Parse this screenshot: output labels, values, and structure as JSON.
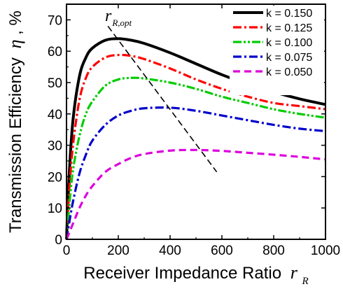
{
  "chart_data": {
    "type": "line",
    "xlabel": "Receiver Impedance Ratio",
    "xlabel_symbol": "r",
    "xlabel_subscript": "R",
    "ylabel": "Transmission Efficiency",
    "ylabel_symbol": "η",
    "ylabel_unit": ", %",
    "xlim": [
      0,
      1000
    ],
    "ylim": [
      0,
      75
    ],
    "xticks": [
      0,
      200,
      400,
      600,
      800,
      1000
    ],
    "yticks": [
      0,
      10,
      20,
      30,
      40,
      50,
      60,
      70
    ],
    "grid": false,
    "legend_position": "top-right",
    "x": [
      0,
      10,
      25,
      50,
      75,
      100,
      150,
      200,
      250,
      300,
      400,
      500,
      600,
      700,
      800,
      900,
      1000
    ],
    "series": [
      {
        "name": "k = 0.150",
        "color": "#000000",
        "dash": "solid",
        "values": [
          0,
          20,
          38,
          52,
          58,
          61,
          63.5,
          64,
          63.5,
          62.5,
          59.5,
          56,
          52.5,
          49.5,
          47,
          44.8,
          43
        ]
      },
      {
        "name": "k = 0.125",
        "color": "#ff0000",
        "dash": "dash-dot",
        "values": [
          0,
          15,
          30,
          44.5,
          51.5,
          55,
          58,
          58.8,
          58.5,
          57.5,
          54.5,
          51,
          48,
          45.5,
          43.5,
          42.5,
          41.5
        ]
      },
      {
        "name": "k = 0.100",
        "color": "#00cc00",
        "dash": "dash-dot-dot",
        "values": [
          0,
          10,
          22,
          33,
          40,
          44,
          49,
          51,
          51.5,
          51.3,
          50,
          48,
          45.5,
          43.5,
          41.5,
          40,
          38.8
        ]
      },
      {
        "name": "k = 0.075",
        "color": "#0000cc",
        "dash": "dash-dot",
        "values": [
          0,
          5,
          12,
          21,
          27,
          31.5,
          36.5,
          39.5,
          41,
          41.8,
          42,
          41,
          39.5,
          38,
          36.5,
          35.3,
          34.5
        ]
      },
      {
        "name": "k = 0.050",
        "color": "#dd00dd",
        "dash": "dash",
        "values": [
          0,
          2,
          5,
          10,
          14,
          17,
          21.5,
          24,
          26,
          27.2,
          28.3,
          28.5,
          28.2,
          27.6,
          27,
          26.3,
          25.5
        ]
      }
    ],
    "annotation": {
      "label": "r",
      "label_subscript": "R,opt",
      "line_x": [
        160,
        580
      ],
      "line_y": [
        68,
        21.5
      ]
    }
  }
}
